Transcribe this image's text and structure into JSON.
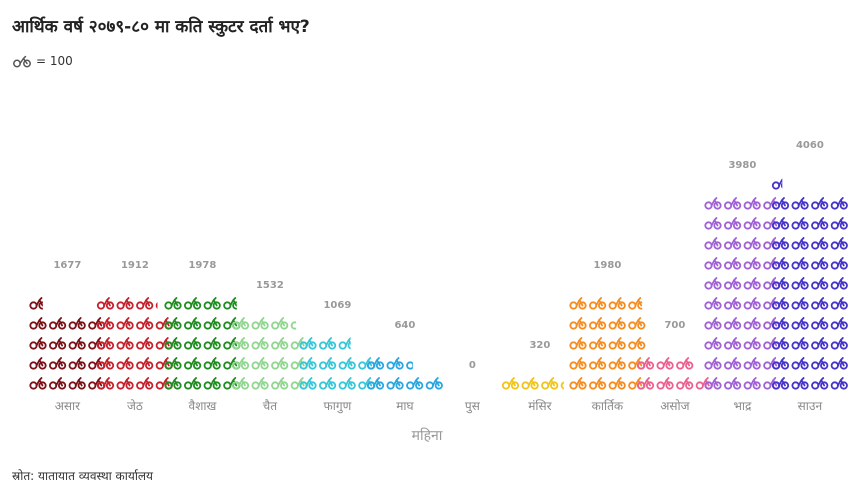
{
  "title": "आर्थिक वर्ष २०७९-८० मा कति स्कुटर दर्ता भए?",
  "legend": {
    "icon": "scooter-icon",
    "label": "= 100"
  },
  "source": "स्रोत: यातायात व्यवस्था कार्यालय",
  "chart_data": {
    "type": "bar",
    "subtype": "pictogram",
    "xlabel": "महिना",
    "ylabel": "",
    "unit_per_icon": 100,
    "categories": [
      "असार",
      "जेठ",
      "वैशाख",
      "चैत",
      "फागुण",
      "माघ",
      "पुस",
      "मंसिर",
      "कार्तिक",
      "असोज",
      "भाद्र",
      "साउन"
    ],
    "values": [
      1677,
      1912,
      1978,
      1532,
      1069,
      640,
      0,
      320,
      1980,
      700,
      3980,
      4060
    ],
    "colors": [
      "#7b0f16",
      "#c5202a",
      "#1e8c1e",
      "#8fd68f",
      "#35c6d8",
      "#27a6e0",
      "#999999",
      "#f0c419",
      "#f68b1e",
      "#ee5f8d",
      "#a060d6",
      "#4433c9"
    ],
    "grid": false
  }
}
